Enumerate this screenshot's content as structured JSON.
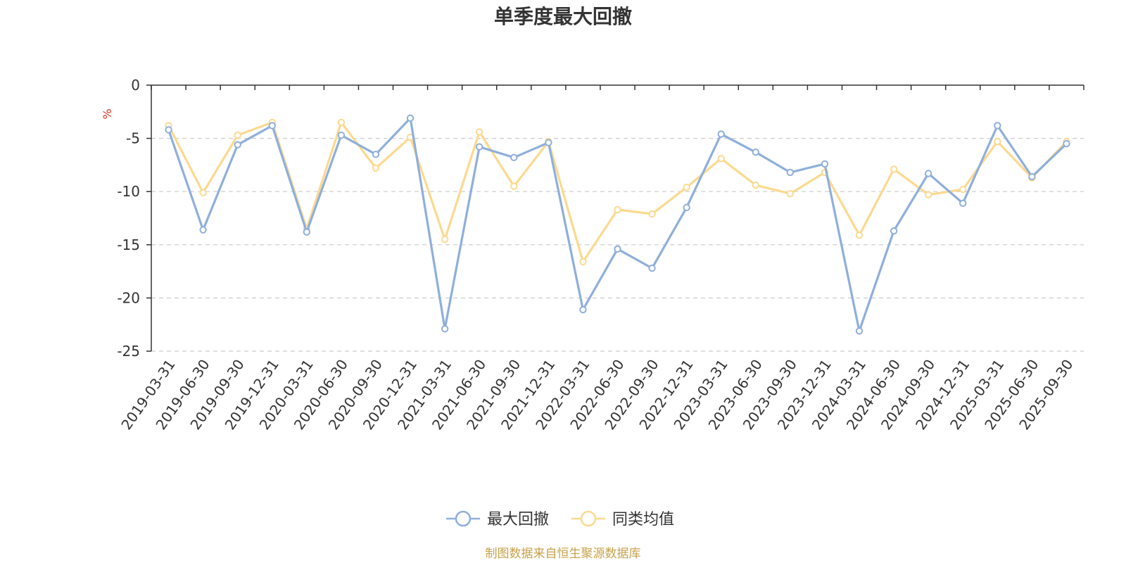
{
  "chart_data": {
    "type": "line",
    "title": "单季度最大回撤",
    "ylabel": "%",
    "ylim": [
      -25,
      0
    ],
    "yticks": [
      0,
      -5,
      -10,
      -15,
      -20,
      -25
    ],
    "grid": true,
    "legend_position": "bottom",
    "categories": [
      "2019-03-31",
      "2019-06-30",
      "2019-09-30",
      "2019-12-31",
      "2020-03-31",
      "2020-06-30",
      "2020-09-30",
      "2020-12-31",
      "2021-03-31",
      "2021-06-30",
      "2021-09-30",
      "2021-12-31",
      "2022-03-31",
      "2022-06-30",
      "2022-09-30",
      "2022-12-31",
      "2023-03-31",
      "2023-06-30",
      "2023-09-30",
      "2023-12-31",
      "2024-03-31",
      "2024-06-30",
      "2024-09-30",
      "2024-12-31",
      "2025-03-31",
      "2025-06-30",
      "2025-09-30"
    ],
    "series": [
      {
        "name": "最大回撤",
        "color": "#8eafdb",
        "values": [
          -4.2,
          -13.6,
          -5.6,
          -3.8,
          -13.8,
          -4.7,
          -6.5,
          -3.1,
          -22.9,
          -5.8,
          -6.8,
          -5.4,
          -21.1,
          -15.4,
          -17.2,
          -11.5,
          -4.6,
          -6.3,
          -8.2,
          -7.4,
          -23.1,
          -13.7,
          -8.3,
          -11.1,
          -3.8,
          -8.6,
          -5.5
        ]
      },
      {
        "name": "同类均值",
        "color": "#fcd98f",
        "values": [
          -3.8,
          -10.1,
          -4.7,
          -3.5,
          -13.5,
          -3.5,
          -7.8,
          -4.9,
          -14.5,
          -4.4,
          -9.5,
          -5.3,
          -16.6,
          -11.7,
          -12.1,
          -9.6,
          -6.9,
          -9.4,
          -10.2,
          -8.2,
          -14.1,
          -7.9,
          -10.3,
          -9.8,
          -5.3,
          -8.7,
          -5.3
        ]
      }
    ]
  },
  "source": "制图数据来自恒生聚源数据库"
}
